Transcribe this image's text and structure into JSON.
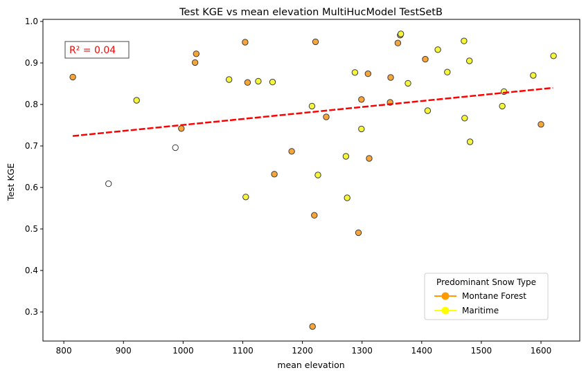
{
  "chart_data": {
    "type": "scatter",
    "title": "Test KGE vs mean elevation MultiHucModel TestSetB",
    "xlabel": "mean elevation",
    "ylabel": "Test KGE",
    "xlim": [
      765,
      1665
    ],
    "ylim": [
      0.23,
      1.005
    ],
    "xticks": [
      800,
      900,
      1000,
      1100,
      1200,
      1300,
      1400,
      1500,
      1600
    ],
    "yticks": [
      0.3,
      0.4,
      0.5,
      0.6,
      0.7,
      0.8,
      0.9,
      1.0
    ],
    "xtick_labels": [
      "800",
      "900",
      "1000",
      "1100",
      "1200",
      "1300",
      "1400",
      "1500",
      "1600"
    ],
    "ytick_labels": [
      "0.3",
      "0.4",
      "0.5",
      "0.6",
      "0.7",
      "0.8",
      "0.9",
      "1.0"
    ],
    "grid": false,
    "annotation": "R² = 0.04",
    "regression": {
      "x": [
        815,
        1620
      ],
      "y": [
        0.724,
        0.84
      ],
      "color": "#ff0000"
    },
    "legend": {
      "title": "Predominant Snow Type",
      "placement": "lower-right",
      "entries": [
        {
          "label": "Montane Forest",
          "color": "#ff9a00"
        },
        {
          "label": "Maritime",
          "color": "#ffff00"
        }
      ]
    },
    "series": [
      {
        "name": "Montane Forest",
        "color": "#f6a53b",
        "points": [
          [
            815,
            0.866
          ],
          [
            997,
            0.742
          ],
          [
            1020,
            0.901
          ],
          [
            1022,
            0.922
          ],
          [
            1104,
            0.95
          ],
          [
            1108,
            0.853
          ],
          [
            1153,
            0.632
          ],
          [
            1182,
            0.687
          ],
          [
            1220,
            0.533
          ],
          [
            1222,
            0.951
          ],
          [
            1217,
            0.265
          ],
          [
            1240,
            0.77
          ],
          [
            1294,
            0.491
          ],
          [
            1299,
            0.812
          ],
          [
            1310,
            0.874
          ],
          [
            1312,
            0.67
          ],
          [
            1348,
            0.865
          ],
          [
            1347,
            0.805
          ],
          [
            1360,
            0.948
          ],
          [
            1364,
            0.967
          ],
          [
            1406,
            0.909
          ],
          [
            1600,
            0.752
          ]
        ]
      },
      {
        "name": "Maritime",
        "color": "#f5f53a",
        "points": [
          [
            922,
            0.81
          ],
          [
            1077,
            0.86
          ],
          [
            1105,
            0.577
          ],
          [
            1126,
            0.856
          ],
          [
            1150,
            0.854
          ],
          [
            1216,
            0.796
          ],
          [
            1226,
            0.63
          ],
          [
            1273,
            0.675
          ],
          [
            1275,
            0.575
          ],
          [
            1288,
            0.877
          ],
          [
            1299,
            0.741
          ],
          [
            1365,
            0.97
          ],
          [
            1377,
            0.851
          ],
          [
            1410,
            0.785
          ],
          [
            1427,
            0.932
          ],
          [
            1443,
            0.878
          ],
          [
            1471,
            0.953
          ],
          [
            1472,
            0.767
          ],
          [
            1480,
            0.905
          ],
          [
            1481,
            0.71
          ],
          [
            1535,
            0.796
          ],
          [
            1538,
            0.831
          ],
          [
            1587,
            0.87
          ],
          [
            1621,
            0.917
          ]
        ]
      },
      {
        "name": "",
        "color": "#ffffff",
        "points": [
          [
            875,
            0.609
          ],
          [
            987,
            0.696
          ]
        ]
      }
    ]
  }
}
